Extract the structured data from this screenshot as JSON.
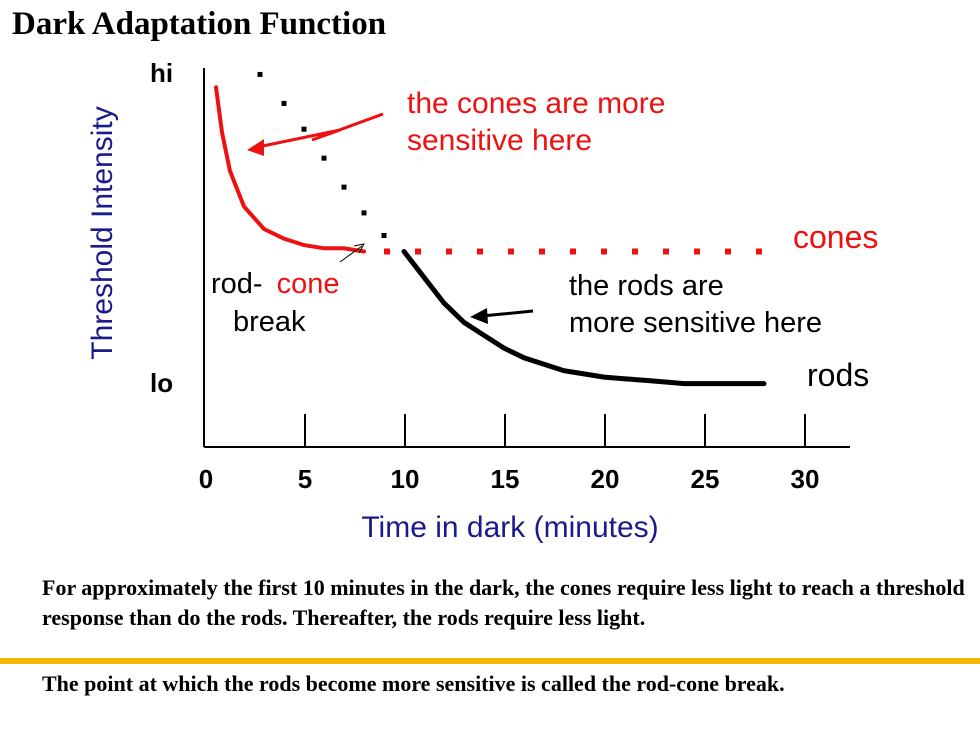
{
  "title": "Dark Adaptation Function",
  "chart_data": {
    "type": "line",
    "xlabel": "Time in dark (minutes)",
    "ylabel": "Threshold Intensity",
    "x_ticks": [
      "0",
      "5",
      "10",
      "15",
      "20",
      "25",
      "30"
    ],
    "y_ticks": [
      "hi",
      "lo"
    ],
    "xlim": [
      0,
      32
    ],
    "ylim": [
      0,
      1
    ],
    "y_scale": "qualitative (lo to hi)",
    "grid": false,
    "series": [
      {
        "name": "cones",
        "color": "#ee1111",
        "style": "solid then dotted",
        "x": [
          0.6,
          0.9,
          1.3,
          2,
          3,
          4,
          5,
          6,
          7,
          8,
          9,
          10,
          11,
          12,
          13,
          14,
          15,
          16,
          17,
          18,
          19,
          20,
          21,
          22,
          23,
          24,
          25,
          26,
          27,
          28
        ],
        "y": [
          0.94,
          0.8,
          0.68,
          0.57,
          0.5,
          0.47,
          0.45,
          0.44,
          0.44,
          0.43,
          0.43,
          0.43,
          0.43,
          0.43,
          0.43,
          0.43,
          0.43,
          0.43,
          0.43,
          0.43,
          0.43,
          0.43,
          0.43,
          0.43,
          0.43,
          0.43,
          0.43,
          0.43,
          0.43,
          0.43
        ]
      },
      {
        "name": "rods",
        "color": "#000000",
        "style": "dotted then solid",
        "x": [
          2.8,
          4,
          5,
          6,
          7,
          8,
          9,
          10,
          11,
          12,
          13,
          14,
          15,
          16,
          17,
          18,
          19,
          20,
          21,
          22,
          23,
          24,
          25,
          26,
          27,
          28
        ],
        "y": [
          0.98,
          0.89,
          0.81,
          0.72,
          0.63,
          0.55,
          0.48,
          0.43,
          0.35,
          0.27,
          0.21,
          0.17,
          0.13,
          0.1,
          0.08,
          0.06,
          0.05,
          0.04,
          0.035,
          0.03,
          0.025,
          0.02,
          0.02,
          0.02,
          0.02,
          0.02
        ]
      }
    ],
    "annotations": {
      "cones_sensitive": [
        "the cones are more",
        "sensitive here"
      ],
      "rods_sensitive": [
        "the rods are",
        "more sensitive here"
      ],
      "break_rod": "rod-",
      "break_cone": "cone",
      "break_word": "break",
      "cones_label": "cones",
      "rods_label": "rods"
    }
  },
  "caption": {
    "paragraph1": "For approximately the first 10 minutes in the dark, the cones require less light to reach a threshold response than do the rods. Thereafter, the rods require less light.",
    "paragraph2": "The point at which the rods become more sensitive is called the rod-cone break."
  },
  "colors": {
    "cones": "#ee1111",
    "rods": "#000000",
    "axis_label": "#1a1a8c",
    "rule": "#f5b800"
  }
}
